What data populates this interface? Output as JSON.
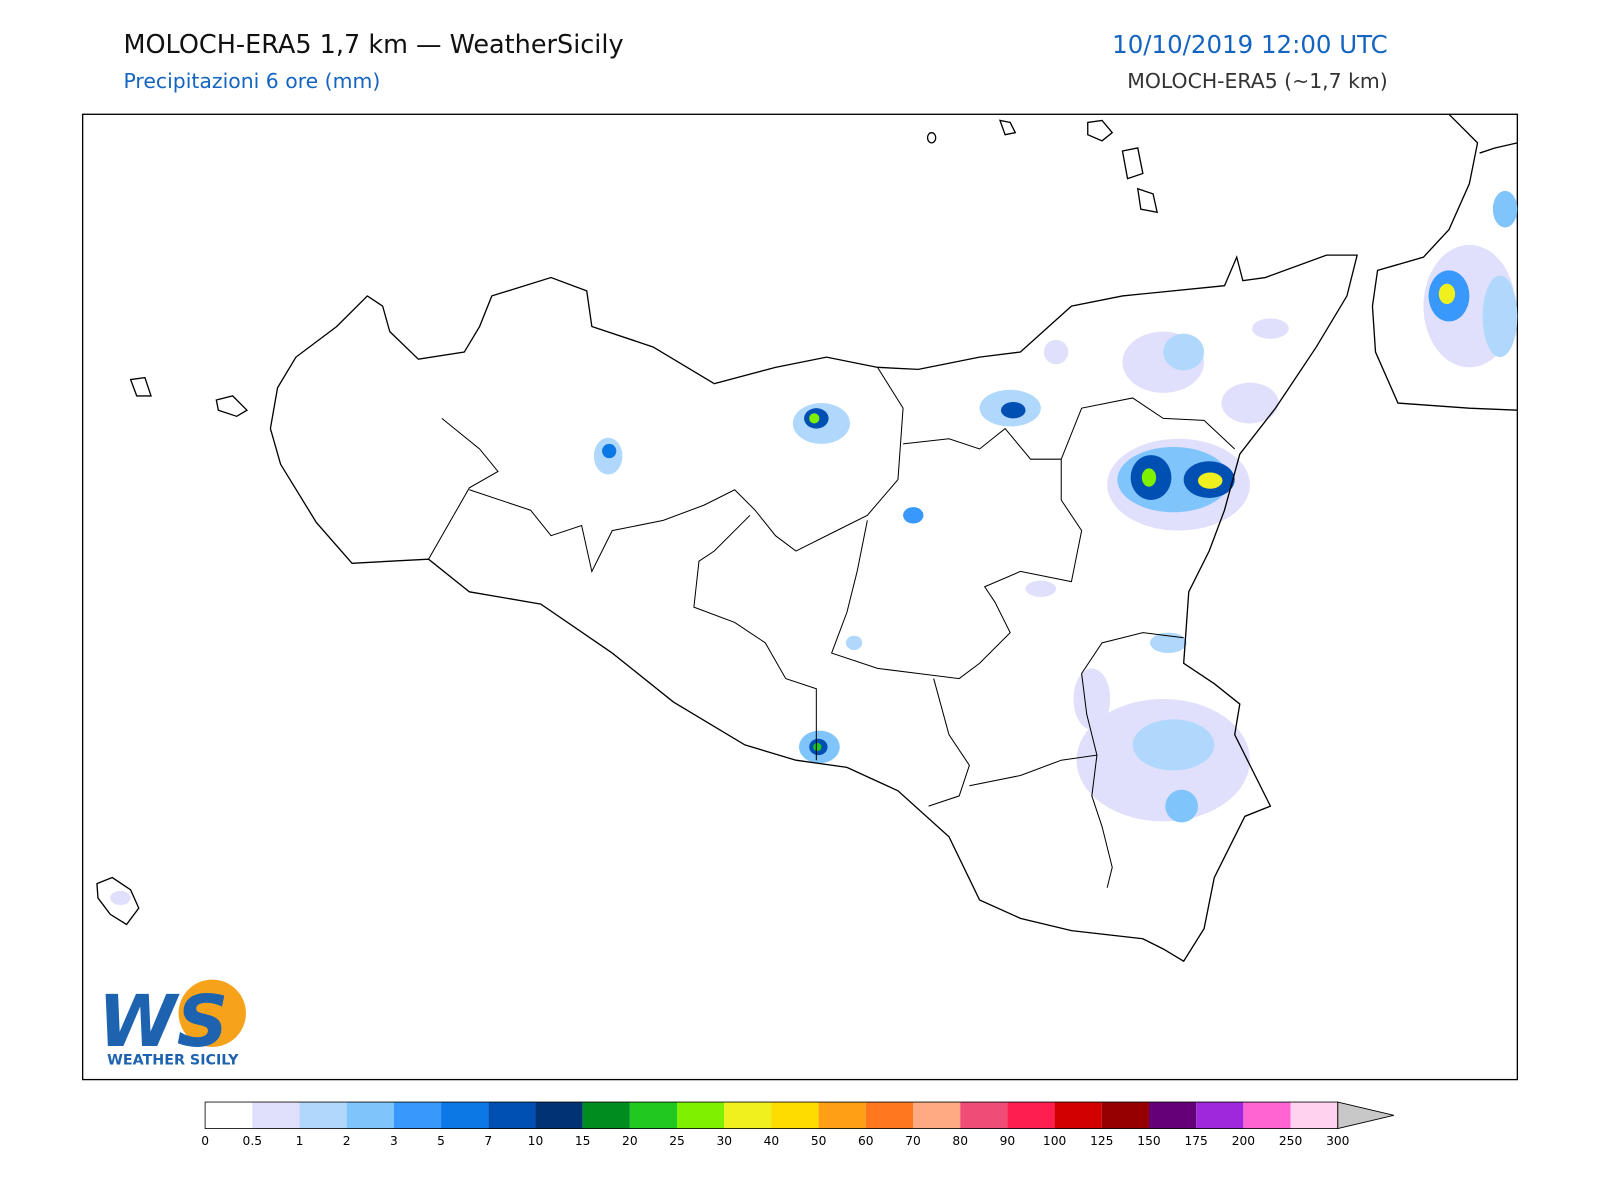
{
  "header": {
    "title": "MOLOCH-ERA5 1,7 km — WeatherSicily",
    "subtitle": "Precipitazioni 6 ore (mm)",
    "date": "10/10/2019 12:00 UTC",
    "model": "MOLOCH-ERA5 (~1,7 km)"
  },
  "logo": {
    "mark": "WS",
    "text": "WEATHER SICILY"
  },
  "legend": {
    "labels": [
      "0",
      "0.5",
      "1",
      "2",
      "3",
      "5",
      "7",
      "10",
      "15",
      "20",
      "25",
      "30",
      "40",
      "50",
      "60",
      "70",
      "80",
      "90",
      "100",
      "125",
      "150",
      "175",
      "200",
      "250",
      "300"
    ],
    "colors": [
      "#ffffff",
      "#e0e0fc",
      "#b0d8fc",
      "#80c4fc",
      "#3898fc",
      "#0c78e6",
      "#0050b4",
      "#003274",
      "#008c1e",
      "#20c820",
      "#7ef000",
      "#f0f01e",
      "#ffdc00",
      "#ffa014",
      "#ff781e",
      "#ffaa82",
      "#f04c78",
      "#ff1e50",
      "#d20000",
      "#960000",
      "#640078",
      "#a028dc",
      "#ff64d2",
      "#ffd2f0"
    ],
    "extend_color": "#c8c8c8"
  }
}
